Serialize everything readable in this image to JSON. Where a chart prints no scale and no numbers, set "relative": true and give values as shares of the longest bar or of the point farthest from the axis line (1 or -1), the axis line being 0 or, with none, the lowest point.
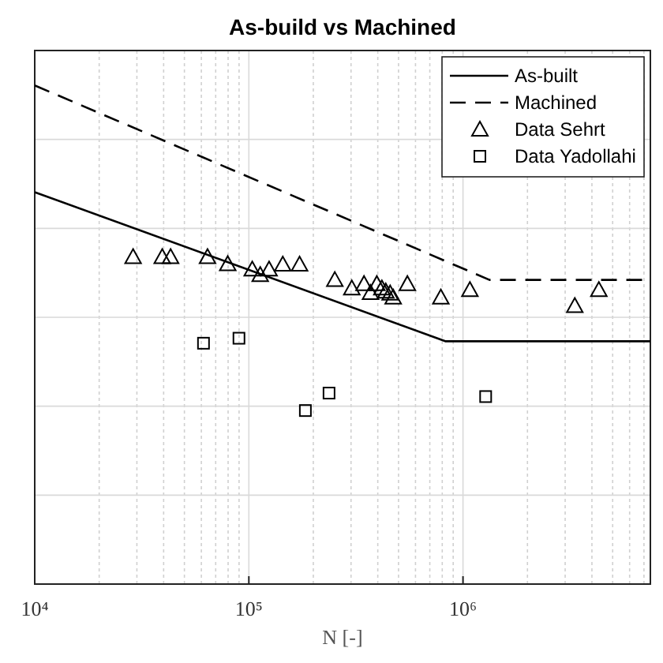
{
  "chart_data": {
    "type": "line",
    "title": "As-build vs Machined",
    "xlabel": "N [-]",
    "relative": true,
    "log": "x",
    "grid": true,
    "legend": "top right",
    "xlim": [
      10000,
      7500000
    ],
    "xticks": [
      {
        "value": 10000,
        "label": "10⁴"
      },
      {
        "value": 100000,
        "label": "10⁵"
      },
      {
        "value": 1000000,
        "label": "10⁶"
      }
    ],
    "series": [
      {
        "name": "As-built",
        "color": "#000000",
        "line_style": "solid",
        "marker": "none",
        "x": [
          10000,
          826000,
          7500000
        ],
        "values": [
          0.786,
          0.487,
          0.487
        ]
      },
      {
        "name": "Machined",
        "color": "#000000",
        "line_style": "dashed",
        "marker": "none",
        "x": [
          10000,
          1330000,
          7500000
        ],
        "values": [
          1.0,
          0.61,
          0.61
        ]
      },
      {
        "name": "Data Sehrt",
        "type": "scatter",
        "color": "#000000",
        "marker": "triangle",
        "x": [
          28800,
          39400,
          43100,
          64100,
          79700,
          103700,
          113000,
          124300,
          144000,
          172500,
          252000,
          302500,
          345000,
          370000,
          396000,
          418000,
          436000,
          457000,
          472000,
          550000,
          788000,
          1077000,
          3327000,
          4310000
        ],
        "values": [
          0.656,
          0.656,
          0.656,
          0.656,
          0.642,
          0.631,
          0.62,
          0.631,
          0.641,
          0.641,
          0.61,
          0.593,
          0.602,
          0.584,
          0.602,
          0.593,
          0.587,
          0.583,
          0.575,
          0.602,
          0.575,
          0.59,
          0.558,
          0.59
        ]
      },
      {
        "name": "Data Yadollahi",
        "type": "scatter",
        "color": "#000000",
        "marker": "square",
        "x": [
          61400,
          89900,
          183600,
          236800,
          1276000
        ],
        "values": [
          0.483,
          0.493,
          0.348,
          0.383,
          0.376
        ]
      }
    ]
  }
}
